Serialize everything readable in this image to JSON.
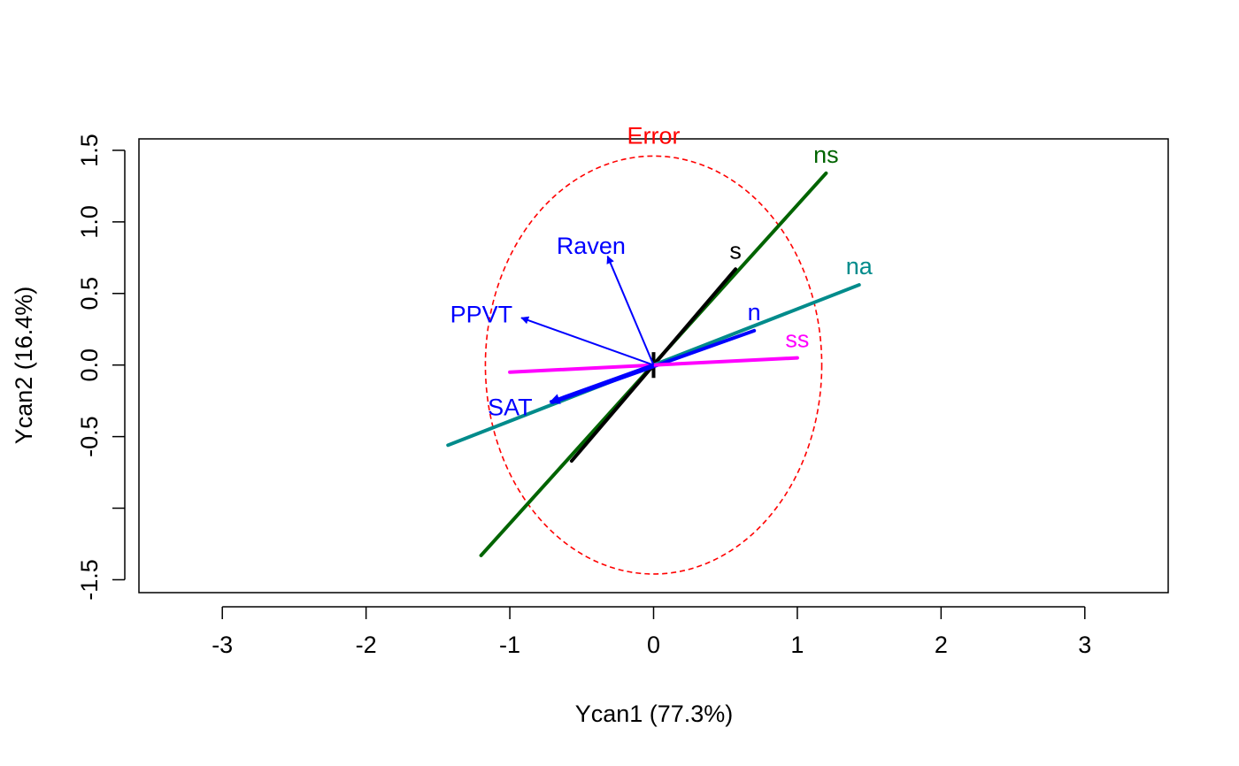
{
  "chart_data": {
    "type": "scatter",
    "title": "",
    "xlabel": "Ycan1 (77.3%)",
    "ylabel": "Ycan2 (16.4%)",
    "xlim": [
      -3.58,
      3.58
    ],
    "ylim": [
      -1.59,
      1.58
    ],
    "xticks": [
      -3,
      -2,
      -1,
      0,
      1,
      2,
      3
    ],
    "xtick_labels": [
      "-3",
      "-2",
      "-1",
      "0",
      "1",
      "2",
      "3"
    ],
    "yticks": [
      -1.5,
      -1.0,
      -0.5,
      0.0,
      0.5,
      1.0,
      1.5
    ],
    "ytick_labels": [
      "-1.5",
      "",
      "-0.5",
      "0.0",
      "0.5",
      "1.0",
      "1.5"
    ],
    "grid": false,
    "legend": "none",
    "error_ellipse": {
      "label": "Error",
      "center": [
        0,
        0
      ],
      "radii": [
        1.17,
        1.46
      ],
      "color": "#ff0000",
      "dashed": true
    },
    "hypothesis_lines": [
      {
        "label": "ns",
        "from": [
          -1.2,
          -1.33
        ],
        "to": [
          1.2,
          1.34
        ],
        "color": "#006400"
      },
      {
        "label": "s",
        "from": [
          -0.57,
          -0.67
        ],
        "to": [
          0.57,
          0.67
        ],
        "color": "#000000"
      },
      {
        "label": "na",
        "from": [
          -1.43,
          -0.56
        ],
        "to": [
          1.43,
          0.56
        ],
        "color": "#008b8b"
      },
      {
        "label": "n",
        "from": [
          -0.7,
          -0.26
        ],
        "to": [
          0.7,
          0.24
        ],
        "color": "#0000ff"
      },
      {
        "label": "ss",
        "from": [
          -1.0,
          -0.05
        ],
        "to": [
          1.0,
          0.05
        ],
        "color": "#ff00ff"
      }
    ],
    "structure_vectors": [
      {
        "label": "Raven",
        "x": -0.32,
        "y": 0.76,
        "color": "#0000ff"
      },
      {
        "label": "PPVT",
        "x": -0.92,
        "y": 0.33,
        "color": "#0000ff"
      },
      {
        "label": "SAT",
        "x": -0.72,
        "y": -0.26,
        "color": "#0000ff"
      }
    ]
  }
}
